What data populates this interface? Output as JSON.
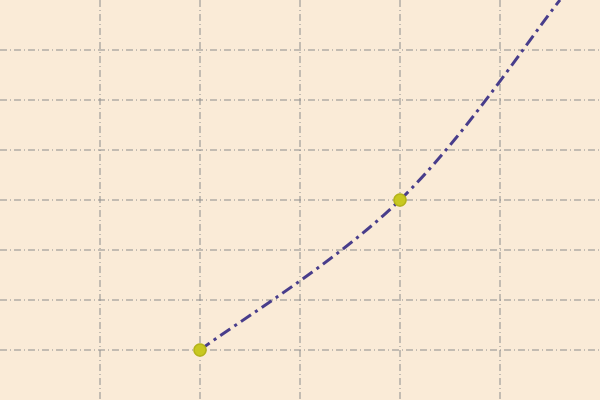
{
  "chart_data": {
    "type": "line",
    "title": "",
    "xlabel": "",
    "ylabel": "",
    "xlim": [
      0,
      6
    ],
    "ylim": [
      0,
      8
    ],
    "x_ticks": [
      1,
      2,
      3,
      4,
      5
    ],
    "y_ticks": [
      1,
      2,
      3,
      4,
      5,
      6,
      7
    ],
    "grid": true,
    "legend": "none",
    "colors": {
      "background": "#faebd7",
      "grid": "#8c8c8c",
      "line": "#483d8b",
      "marker_fill": "#c8c820",
      "marker_edge": "#b4b41a"
    },
    "line_style": "dashdot",
    "series": [
      {
        "x": [
          2,
          4,
          5.6
        ],
        "y": [
          1,
          4,
          8
        ],
        "marked_x": [
          2,
          4
        ]
      }
    ]
  }
}
